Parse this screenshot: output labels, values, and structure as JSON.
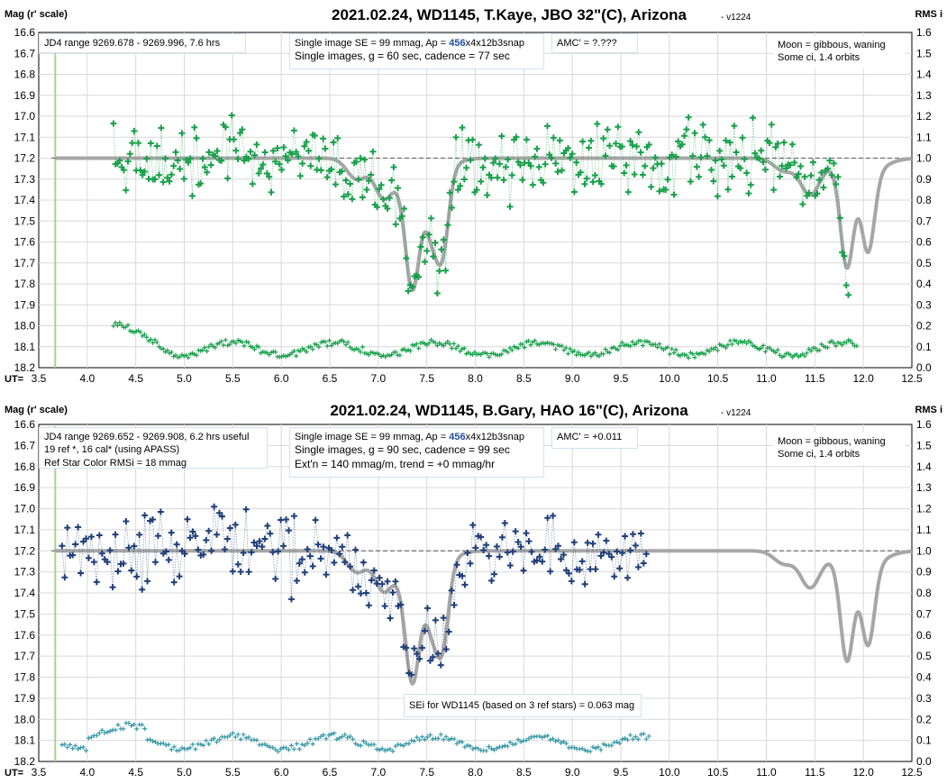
{
  "chart_data": [
    {
      "type": "scatter",
      "title": "2021.02.24, WD1145, T.Kaye, JBO 32\"(C), Arizona",
      "version": "- v1224",
      "ylabel_left": "Mag (r' scale)",
      "ylabel_right": "RMS i",
      "xlabel": "UT=",
      "xlim": [
        3.5,
        12.5
      ],
      "ylim_left": [
        16.6,
        18.2
      ],
      "ylim_right": [
        0.0,
        1.6
      ],
      "x_ticks": [
        "3.5",
        "4.0",
        "4.5",
        "5.0",
        "5.5",
        "6.0",
        "6.5",
        "7.0",
        "7.5",
        "8.0",
        "8.5",
        "9.0",
        "9.5",
        "10.0",
        "10.5",
        "11.0",
        "11.5",
        "12.0",
        "12.5"
      ],
      "y_ticks_left": [
        "16.6",
        "16.7",
        "16.8",
        "16.9",
        "17.0",
        "17.1",
        "17.2",
        "17.3",
        "17.4",
        "17.5",
        "17.6",
        "17.7",
        "17.8",
        "17.9",
        "18.0",
        "18.1",
        "18.2"
      ],
      "y_ticks_right": [
        "1.6",
        "1.5",
        "1.4",
        "1.3",
        "1.2",
        "1.1",
        "1.0",
        "0.9",
        "0.8",
        "0.7",
        "0.6",
        "0.5",
        "0.4",
        "0.3",
        "0.2",
        "0.1",
        "0.0"
      ],
      "grid": true,
      "reference_level": 17.2,
      "series_color": "#18a04a",
      "model_color": "#a6a6a6",
      "data_start": 4.27,
      "data_end": 11.86,
      "data_step": 0.0214,
      "rms_start": 4.27,
      "rms_end": 11.95,
      "rms_step": 0.0214,
      "annotations": {
        "left": "JD4 range 9269.678 - 9269.996, 7.6 hrs",
        "mid_line1_pre": "Single image SE = 99 mmag, Ap = ",
        "mid_line1_hl": "456",
        "mid_line1_post": "x4x12b3snap",
        "mid_line2": "Single images, g = 60 sec, cadence = 77 sec",
        "amc": "AMC' = ?.???",
        "right_line1": "Moon = gibbous, waning",
        "right_line2": "Some ci, 1.4 orbits"
      }
    },
    {
      "type": "scatter",
      "title": "2021.02.24, WD1145, B.Gary, HAO 16\"(C), Arizona",
      "version": "- v1224",
      "ylabel_left": "Mag (r' scale)",
      "ylabel_right": "RMS i",
      "xlabel": "UT=",
      "xlim": [
        3.5,
        12.5
      ],
      "ylim_left": [
        16.6,
        18.2
      ],
      "ylim_right": [
        0.0,
        1.6
      ],
      "x_ticks": [
        "3.5",
        "4.0",
        "4.5",
        "5.0",
        "5.5",
        "6.0",
        "6.5",
        "7.0",
        "7.5",
        "8.0",
        "8.5",
        "9.0",
        "9.5",
        "10.0",
        "10.5",
        "11.0",
        "11.5",
        "12.0",
        "12.5"
      ],
      "y_ticks_left": [
        "16.6",
        "16.7",
        "16.8",
        "16.9",
        "17.0",
        "17.1",
        "17.2",
        "17.3",
        "17.4",
        "17.5",
        "17.6",
        "17.7",
        "17.8",
        "17.9",
        "18.0",
        "18.1",
        "18.2"
      ],
      "y_ticks_right": [
        "1.6",
        "1.5",
        "1.4",
        "1.3",
        "1.2",
        "1.1",
        "1.0",
        "0.9",
        "0.8",
        "0.7",
        "0.6",
        "0.5",
        "0.4",
        "0.3",
        "0.2",
        "0.1",
        "0.0"
      ],
      "grid": true,
      "reference_level": 17.2,
      "series_color": "#1f3f7a",
      "rms_color": "#3a9aa8",
      "model_color": "#a6a6a6",
      "data_start": 3.74,
      "data_end": 9.78,
      "data_step": 0.0275,
      "rms_start": 3.74,
      "rms_end": 9.8,
      "rms_step": 0.0275,
      "annotations": {
        "left_line1": "JD4 range 9269.652 - 9269.908, 6.2 hrs useful",
        "left_line2": "19 ref *, 16 cal* (using APASS)",
        "left_line3": "Ref Star Color RMSi = 18 mmag",
        "mid_line1_pre": "Single image SE = 99 mmag, Ap = ",
        "mid_line1_hl": "456",
        "mid_line1_post": "x4x12b3snap",
        "mid_line2": "Single images, g = 90 sec, cadence = 99 sec",
        "mid_line3": "Ext'n = 140 mmag/m, trend = +0 mmag/hr",
        "amc": "AMC' = +0.011",
        "right_line1": "Moon = gibbous, waning",
        "right_line2": "Some ci, 1.4 orbits",
        "sei": "SEi for WD1145 (based on 3 ref stars) = 0.063 mag"
      }
    }
  ],
  "model": {
    "baseline": 17.2,
    "dips": [
      {
        "center": 6.78,
        "depth": 0.1,
        "width": 0.1
      },
      {
        "center": 7.05,
        "depth": 0.16,
        "width": 0.09
      },
      {
        "center": 7.35,
        "depth": 0.46,
        "width": 0.07
      },
      {
        "center": 7.55,
        "depth": 0.18,
        "width": 0.06
      },
      {
        "center": 7.66,
        "depth": 0.37,
        "width": 0.065
      },
      {
        "center": 7.42,
        "depth": 0.18,
        "width": 0.2
      },
      {
        "center": 11.18,
        "depth": 0.06,
        "width": 0.1
      },
      {
        "center": 11.45,
        "depth": 0.17,
        "width": 0.1
      },
      {
        "center": 11.83,
        "depth": 0.44,
        "width": 0.065
      },
      {
        "center": 12.05,
        "depth": 0.36,
        "width": 0.065
      },
      {
        "center": 11.95,
        "depth": 0.1,
        "width": 0.2
      }
    ]
  }
}
